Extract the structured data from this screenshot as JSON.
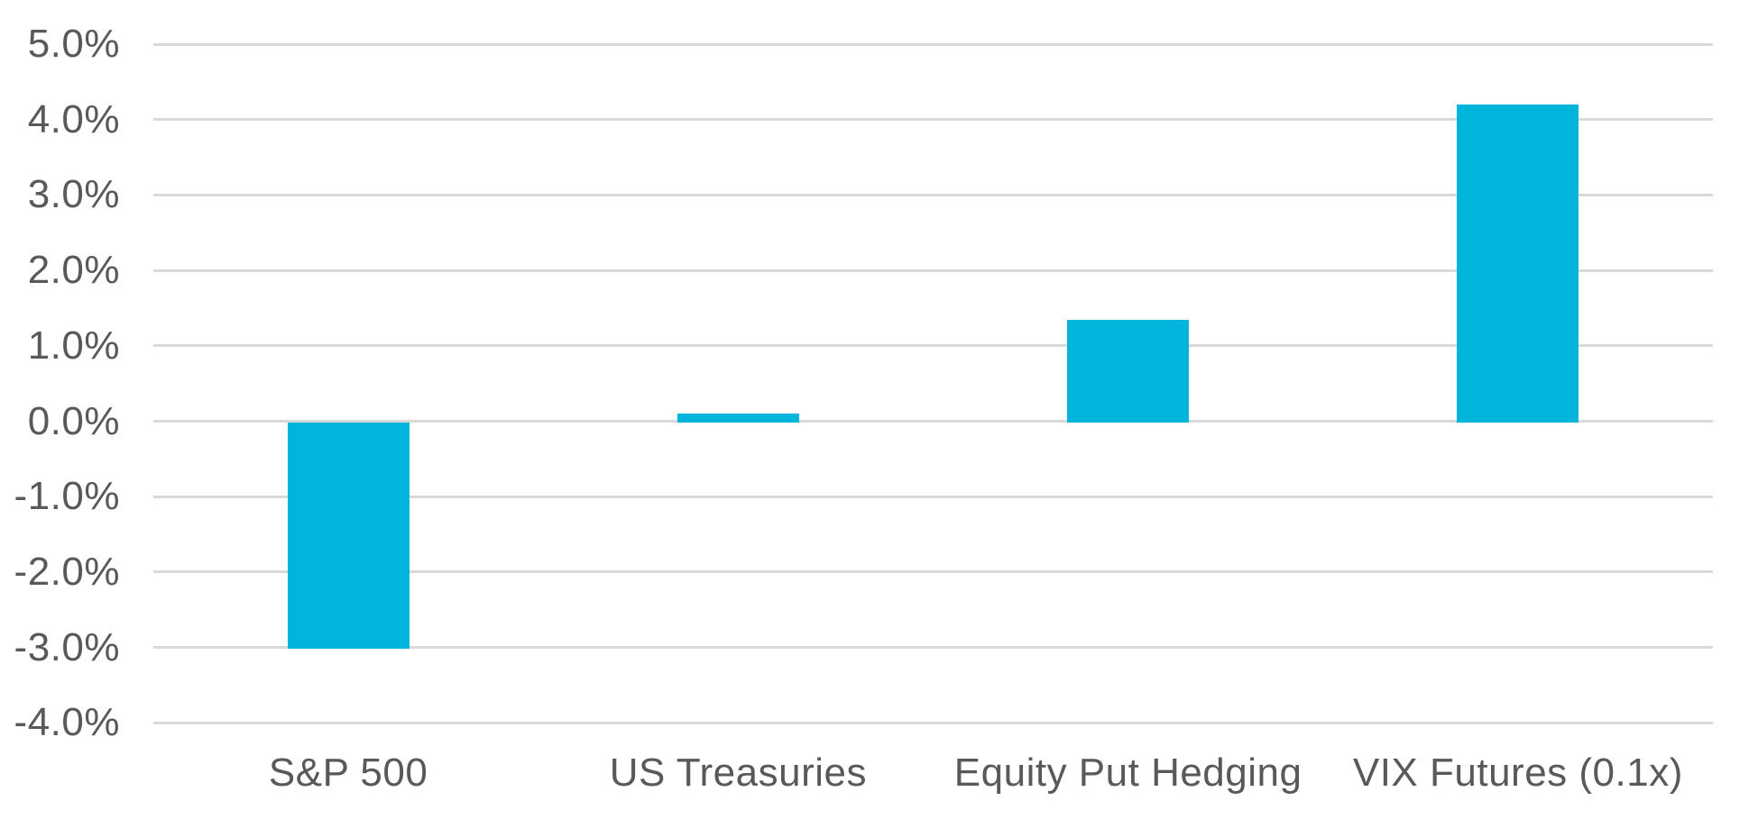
{
  "chart_data": {
    "type": "bar",
    "title": "",
    "categories": [
      "S&P 500",
      "US Treasuries",
      "Equity Put Hedging",
      "VIX Futures (0.1x)"
    ],
    "values": [
      -3.0,
      0.1,
      1.35,
      4.2
    ],
    "value_unit": "percent",
    "y_ticks": [
      5,
      4,
      3,
      2,
      1,
      0,
      -1,
      -2,
      -3,
      -4
    ],
    "y_tick_labels": [
      "5.0%",
      "4.0%",
      "3.0%",
      "2.0%",
      "1.0%",
      "0.0%",
      "-1.0%",
      "-2.0%",
      "-3.0%",
      "-4.0%"
    ],
    "ylim": [
      -4,
      5
    ],
    "xlabel": "",
    "ylabel": "",
    "grid": true,
    "legend": "none",
    "colors": {
      "bar": "#00B4DC",
      "gridline": "#D9D9D9",
      "tick_text": "#595959",
      "category_text": "#595959",
      "background": "#FFFFFF"
    }
  }
}
